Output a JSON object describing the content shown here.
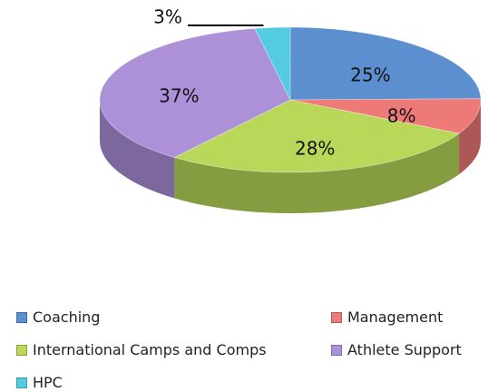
{
  "chart_data": {
    "type": "pie3d",
    "categories": [
      "Coaching",
      "Management",
      "International Camps and Comps",
      "Athlete Support",
      "HPC"
    ],
    "values": [
      25,
      8,
      28,
      37,
      3
    ],
    "value_labels": [
      "25%",
      "8%",
      "28%",
      "37%",
      "3%"
    ],
    "colors": [
      "#5b8fd0",
      "#ee7a78",
      "#b9d85a",
      "#ac90d8",
      "#55cbe0"
    ],
    "legend": "bottom"
  }
}
